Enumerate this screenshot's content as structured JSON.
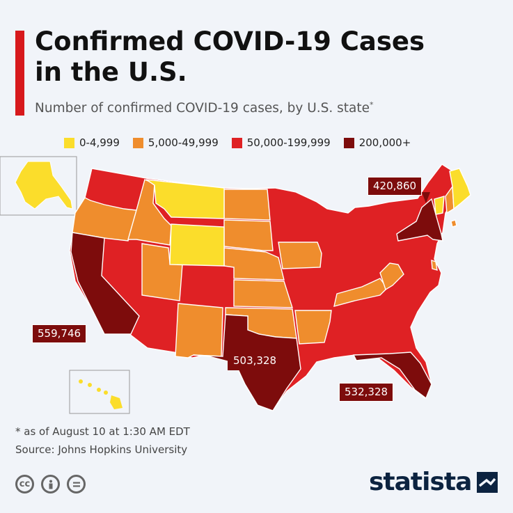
{
  "header": {
    "title_line1": "Confirmed COVID-19 Cases",
    "title_line2": "in the U.S.",
    "subtitle": "Number of confirmed COVID-19 cases, by U.S. state",
    "subtitle_mark": "*"
  },
  "legend": [
    {
      "label": "0-4,999",
      "color": "#fbdd2b"
    },
    {
      "label": "5,000-49,999",
      "color": "#ef8d2d"
    },
    {
      "label": "50,000-199,999",
      "color": "#df2124"
    },
    {
      "label": "200,000+",
      "color": "#7d0c0c"
    }
  ],
  "callouts": {
    "new_york": "420,860",
    "california": "559,746",
    "texas": "503,328",
    "florida": "532,328"
  },
  "footer": {
    "note": "* as of August 10 at 1:30 AM EDT",
    "source": "Source: Johns Hopkins University",
    "license_icons": [
      "cc-icon",
      "attribution-icon",
      "no-derivatives-icon"
    ],
    "brand": "statista"
  }
}
